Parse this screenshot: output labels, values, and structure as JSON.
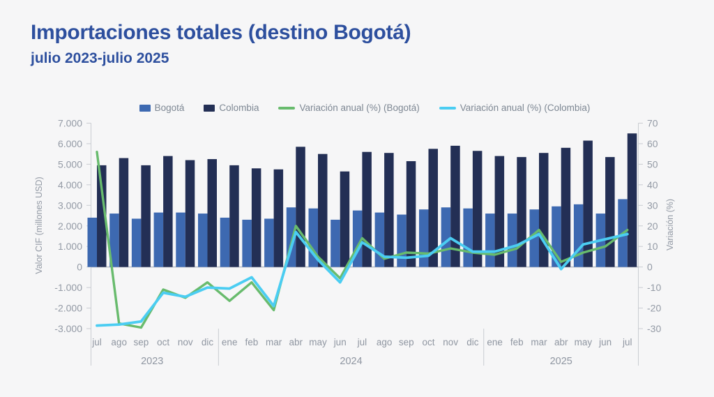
{
  "header": {
    "title": "Importaciones totales (destino Bogotá)",
    "subtitle": "julio 2023-julio 2025"
  },
  "legend": [
    {
      "label": "Bogotá",
      "marker": "square",
      "color": "#3d69b1"
    },
    {
      "label": "Colombia",
      "marker": "square",
      "color": "#232f55"
    },
    {
      "label": "Variación anual (%) (Bogotá)",
      "marker": "line",
      "color": "#68bb6d"
    },
    {
      "label": "Variación anual (%) (Colombia)",
      "marker": "line",
      "color": "#4bcdf2"
    }
  ],
  "chart_data": {
    "type": "bar+line combo, dual axis",
    "categories": [
      "jul",
      "ago",
      "sep",
      "oct",
      "nov",
      "dic",
      "ene",
      "feb",
      "mar",
      "abr",
      "may",
      "jun",
      "jul",
      "ago",
      "sep",
      "oct",
      "nov",
      "dic",
      "ene",
      "feb",
      "mar",
      "abr",
      "may",
      "jun",
      "jul"
    ],
    "year_groups": [
      {
        "label": "2023",
        "start": 0,
        "end": 5
      },
      {
        "label": "2024",
        "start": 6,
        "end": 17
      },
      {
        "label": "2025",
        "start": 18,
        "end": 24
      }
    ],
    "bar_series": [
      {
        "name": "Bogotá",
        "color": "#3d69b1",
        "values": [
          2400,
          2600,
          2350,
          2650,
          2650,
          2600,
          2400,
          2300,
          2350,
          2900,
          2850,
          2300,
          2750,
          2650,
          2550,
          2800,
          2900,
          2850,
          2600,
          2600,
          2800,
          2950,
          3050,
          2600,
          3300
        ]
      },
      {
        "name": "Colombia",
        "color": "#232f55",
        "values": [
          4950,
          5300,
          4950,
          5400,
          5200,
          5250,
          4950,
          4800,
          4750,
          5850,
          5500,
          4650,
          5600,
          5550,
          5150,
          5750,
          5900,
          5650,
          5400,
          5350,
          5550,
          5800,
          6150,
          5350,
          6500
        ]
      }
    ],
    "line_series": [
      {
        "name": "Variación anual (%) (Bogotá)",
        "color": "#68bb6d",
        "values": [
          56,
          -27.5,
          -29.5,
          -11,
          -15,
          -7.5,
          -16.5,
          -7.5,
          -21,
          20,
          5,
          -5.5,
          14,
          4,
          7,
          6.5,
          9,
          7,
          6,
          9,
          18,
          2.5,
          7,
          10,
          18
        ]
      },
      {
        "name": "Variación anual (%) (Colombia)",
        "color": "#4bcdf2",
        "values": [
          -28.5,
          -28,
          -26.5,
          -12.5,
          -14.5,
          -10,
          -10.5,
          -5,
          -19,
          17,
          3.5,
          -7.5,
          12,
          5,
          4.5,
          5.5,
          14,
          7.5,
          7.5,
          10.5,
          16,
          -1,
          11,
          13.5,
          16
        ]
      }
    ],
    "left_axis": {
      "title": "Valor CIF (millones USD)",
      "min": -3000,
      "max": 7000,
      "step": 1000
    },
    "right_axis": {
      "title": "Variación (%)",
      "min": -30,
      "max": 70,
      "step": 10
    },
    "grid": "zero line only",
    "legend_position": "top center"
  },
  "colors": {
    "background": "#f6f6f7",
    "title": "#2d4f9e",
    "axis_line": "#c9ccd1",
    "zero_line": "#b9bdc4",
    "axis_text": "#939aa5"
  }
}
